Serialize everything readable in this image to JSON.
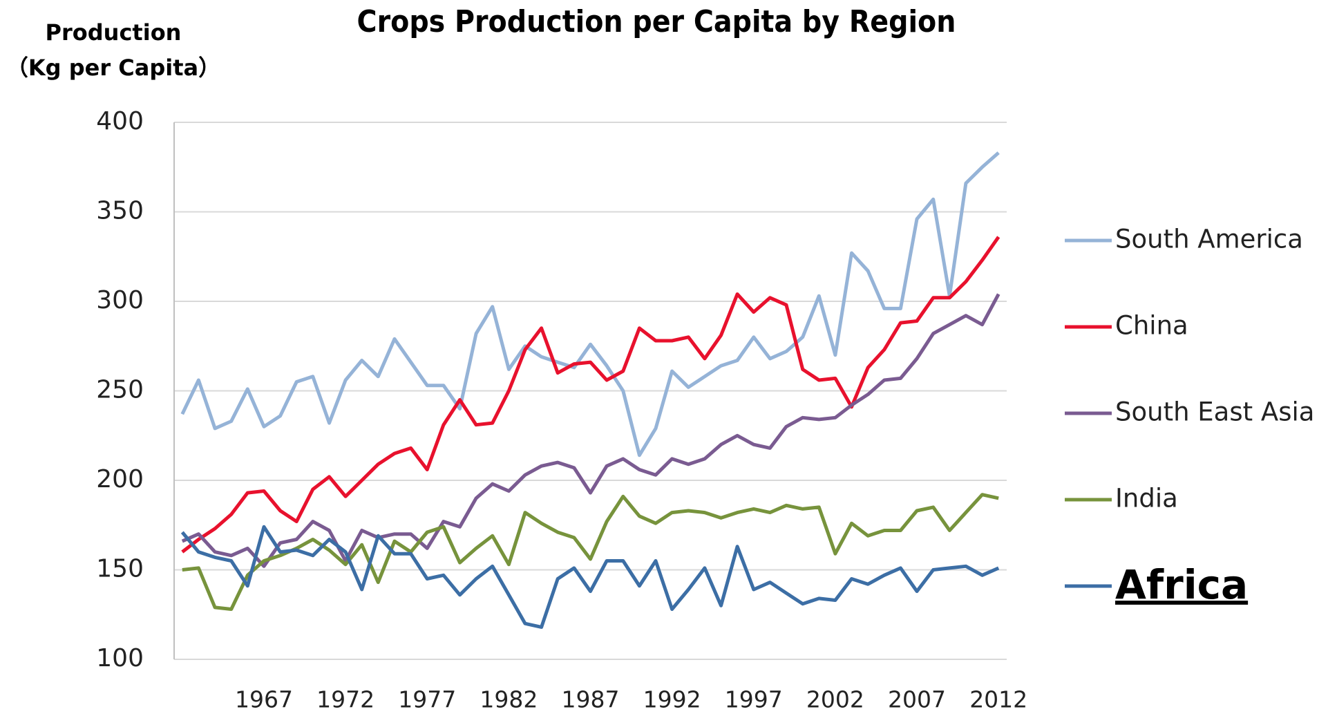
{
  "chart_data": {
    "type": "line",
    "title": "Crops Production per Capita by Region",
    "ylabel": [
      "Production",
      "（Kg per Capita）"
    ],
    "x": [
      1962,
      1963,
      1964,
      1965,
      1966,
      1967,
      1968,
      1969,
      1970,
      1971,
      1972,
      1973,
      1974,
      1975,
      1976,
      1977,
      1978,
      1979,
      1980,
      1981,
      1982,
      1983,
      1984,
      1985,
      1986,
      1987,
      1988,
      1989,
      1990,
      1991,
      1992,
      1993,
      1994,
      1995,
      1996,
      1997,
      1998,
      1999,
      2000,
      2001,
      2002,
      2003,
      2004,
      2005,
      2006,
      2007,
      2008,
      2009,
      2010,
      2011,
      2012
    ],
    "xlim": [
      1961.5,
      2012.5
    ],
    "xticks": [
      1967,
      1972,
      1977,
      1982,
      1987,
      1992,
      1997,
      2002,
      2007,
      2012
    ],
    "ylim": [
      100,
      400
    ],
    "yticks": [
      100,
      150,
      200,
      250,
      300,
      350,
      400
    ],
    "grid": true,
    "legend": "right",
    "series": [
      {
        "name": "South America",
        "color": "#95b3d7",
        "values": [
          237,
          256,
          229,
          233,
          251,
          230,
          236,
          255,
          258,
          232,
          256,
          267,
          258,
          279,
          266,
          253,
          253,
          240,
          282,
          297,
          262,
          275,
          269,
          266,
          263,
          276,
          264,
          250,
          214,
          229,
          261,
          252,
          258,
          264,
          267,
          280,
          268,
          272,
          280,
          303,
          270,
          327,
          317,
          296,
          296,
          346,
          357,
          303,
          366,
          375,
          383
        ]
      },
      {
        "name": "China",
        "color": "#e8112d",
        "values": [
          160,
          167,
          173,
          181,
          193,
          194,
          183,
          177,
          195,
          202,
          191,
          200,
          209,
          215,
          218,
          206,
          231,
          245,
          231,
          232,
          250,
          273,
          285,
          260,
          265,
          266,
          256,
          261,
          285,
          278,
          278,
          280,
          268,
          281,
          304,
          294,
          302,
          298,
          262,
          256,
          257,
          241,
          263,
          273,
          288,
          289,
          302,
          302,
          311,
          323,
          336
        ]
      },
      {
        "name": "South East Asia",
        "color": "#7a5b91",
        "values": [
          166,
          170,
          160,
          158,
          162,
          152,
          165,
          167,
          177,
          172,
          155,
          172,
          168,
          170,
          170,
          162,
          177,
          174,
          190,
          198,
          194,
          203,
          208,
          210,
          207,
          193,
          208,
          212,
          206,
          203,
          212,
          209,
          212,
          220,
          225,
          220,
          218,
          230,
          235,
          234,
          235,
          242,
          248,
          256,
          257,
          268,
          282,
          287,
          292,
          287,
          304
        ]
      },
      {
        "name": "India",
        "color": "#77933c",
        "values": [
          150,
          151,
          129,
          128,
          147,
          155,
          158,
          162,
          167,
          161,
          153,
          164,
          143,
          166,
          160,
          171,
          174,
          154,
          162,
          169,
          153,
          182,
          176,
          171,
          168,
          156,
          177,
          191,
          180,
          176,
          182,
          183,
          182,
          179,
          182,
          184,
          182,
          186,
          184,
          185,
          159,
          176,
          169,
          172,
          172,
          183,
          185,
          172,
          182,
          192,
          190
        ]
      },
      {
        "name": "Africa",
        "color": "#3c6ea5",
        "values": [
          171,
          160,
          157,
          155,
          141,
          174,
          160,
          161,
          158,
          167,
          160,
          139,
          169,
          159,
          159,
          145,
          147,
          136,
          145,
          152,
          136,
          120,
          118,
          145,
          151,
          138,
          155,
          155,
          141,
          155,
          128,
          139,
          151,
          130,
          163,
          139,
          143,
          137,
          131,
          134,
          133,
          145,
          142,
          147,
          151,
          138,
          150,
          151,
          152,
          147,
          151
        ]
      }
    ]
  }
}
